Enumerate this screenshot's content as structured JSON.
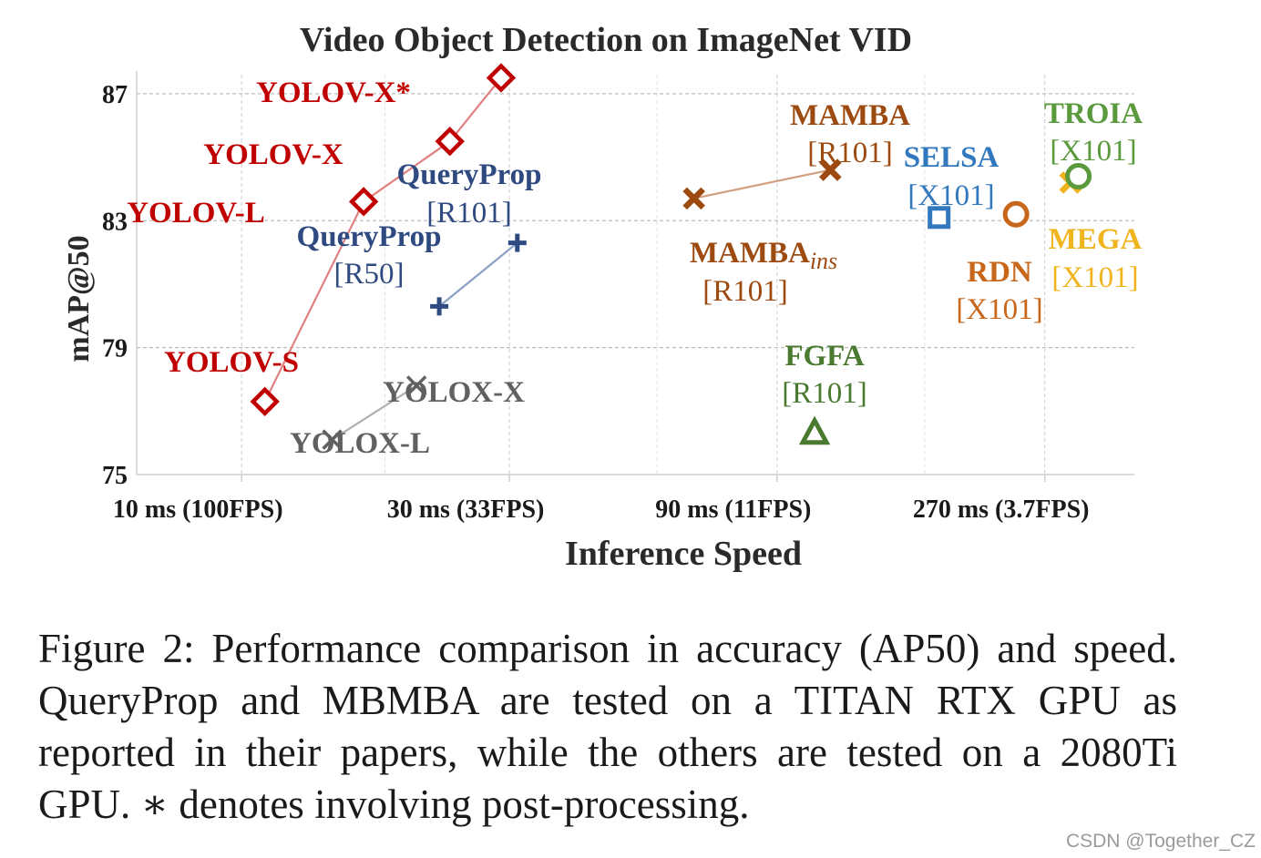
{
  "chart_data": {
    "type": "scatter",
    "title": "Video Object Detection on ImageNet VID",
    "xlabel": "Inference Speed",
    "ylabel": "mAP@50",
    "x_scale": "log",
    "xlim_ms": [
      6.5,
      390
    ],
    "ylim": [
      75,
      87.6
    ],
    "x_ticks": [
      {
        "value": 10,
        "label": "10 ms (100FPS)"
      },
      {
        "value": 30,
        "label": "30 ms (33FPS)"
      },
      {
        "value": 90,
        "label": "90 ms (11FPS)"
      },
      {
        "value": 270,
        "label": "270 ms (3.7FPS)"
      }
    ],
    "y_ticks": [
      75,
      79,
      83,
      87
    ],
    "grid": true,
    "series": [
      {
        "name": "YOLOV",
        "color": "#c00000",
        "marker": "diamond",
        "connected": true,
        "points": [
          {
            "label": "YOLOV-S",
            "x": 11,
            "y": 77.3
          },
          {
            "label": "YOLOV-L",
            "x": 16.5,
            "y": 83.6
          },
          {
            "label": "YOLOV-X",
            "x": 23.5,
            "y": 85.5
          },
          {
            "label": "YOLOV-X*",
            "x": 29,
            "y": 87.5
          }
        ]
      },
      {
        "name": "YOLOX",
        "color": "#606060",
        "marker": "x",
        "connected": true,
        "points": [
          {
            "label": "YOLOX-L",
            "x": 14.5,
            "y": 76.1
          },
          {
            "label": "YOLOX-X",
            "x": 20.5,
            "y": 77.8
          }
        ]
      },
      {
        "name": "QueryProp",
        "color": "#2e4a80",
        "marker": "plus",
        "connected": true,
        "points": [
          {
            "label": "QueryProp [R50]",
            "x": 22.5,
            "y": 80.3
          },
          {
            "label": "QueryProp [R101]",
            "x": 31,
            "y": 82.3
          }
        ]
      },
      {
        "name": "MAMBA",
        "color": "#9c4a10",
        "marker": "x-bold",
        "connected": true,
        "points": [
          {
            "label": "MAMBAins [R101]",
            "x": 64,
            "y": 83.7
          },
          {
            "label": "MAMBA [R101]",
            "x": 112,
            "y": 84.6
          }
        ]
      },
      {
        "name": "SELSA [X101]",
        "color": "#3278be",
        "marker": "square",
        "points": [
          {
            "label": "SELSA [X101]",
            "x": 175,
            "y": 83.1
          }
        ]
      },
      {
        "name": "RDN [X101]",
        "color": "#c8661a",
        "marker": "circle",
        "points": [
          {
            "label": "RDN [X101]",
            "x": 240,
            "y": 83.2
          }
        ]
      },
      {
        "name": "MEGA [X101]",
        "color": "#f0b41e",
        "marker": "x-bold",
        "points": [
          {
            "label": "MEGA [X101]",
            "x": 300,
            "y": 84.2
          }
        ]
      },
      {
        "name": "TROIA [X101]",
        "color": "#5a9a3c",
        "marker": "circle",
        "points": [
          {
            "label": "TROIA [X101]",
            "x": 310,
            "y": 84.4
          }
        ]
      },
      {
        "name": "FGFA [R101]",
        "color": "#4a7a30",
        "marker": "triangle",
        "points": [
          {
            "label": "FGFA [R101]",
            "x": 105,
            "y": 76.3
          }
        ]
      }
    ],
    "annotations": [
      {
        "id": "yolovxs",
        "text": "YOLOV-X*",
        "color": "#c00000"
      },
      {
        "id": "yolovx",
        "text": "YOLOV-X",
        "color": "#c00000"
      },
      {
        "id": "yolovl",
        "text": "YOLOV-L",
        "color": "#c00000"
      },
      {
        "id": "yolovs",
        "text": "YOLOV-S",
        "color": "#c00000"
      },
      {
        "id": "qp101a",
        "text": "QueryProp",
        "color": "#2e4a80"
      },
      {
        "id": "qp101b",
        "text": "[R101]",
        "color": "#2e4a80"
      },
      {
        "id": "qp50a",
        "text": "QueryProp",
        "color": "#2e4a80"
      },
      {
        "id": "qp50b",
        "text": "[R50]",
        "color": "#2e4a80"
      },
      {
        "id": "yoloxx",
        "text": "YOLOX-X",
        "color": "#606060"
      },
      {
        "id": "yoloxl",
        "text": "YOLOX-L",
        "color": "#606060"
      },
      {
        "id": "mambaa",
        "text": "MAMBA",
        "color": "#9c4a10"
      },
      {
        "id": "mambab",
        "text": "[R101]",
        "color": "#9c4a10"
      },
      {
        "id": "mambainsa",
        "text": "MAMBA",
        "sub": "ins",
        "color": "#9c4a10"
      },
      {
        "id": "mambainsb",
        "text": "[R101]",
        "color": "#9c4a10"
      },
      {
        "id": "selsaa",
        "text": "SELSA",
        "color": "#3278be"
      },
      {
        "id": "selsab",
        "text": "[X101]",
        "color": "#3278be"
      },
      {
        "id": "rdna",
        "text": "RDN",
        "color": "#c8661a"
      },
      {
        "id": "rdnb",
        "text": "[X101]",
        "color": "#c8661a"
      },
      {
        "id": "troiaa",
        "text": "TROIA",
        "color": "#5a9a3c"
      },
      {
        "id": "troiab",
        "text": "[X101]",
        "color": "#5a9a3c"
      },
      {
        "id": "megaa",
        "text": "MEGA",
        "color": "#f0b41e"
      },
      {
        "id": "megab",
        "text": "[X101]",
        "color": "#f0b41e"
      },
      {
        "id": "fgfaa",
        "text": "FGFA",
        "color": "#4a7a30"
      },
      {
        "id": "fgfab",
        "text": "[R101]",
        "color": "#4a7a30"
      }
    ]
  },
  "caption": "Figure 2: Performance comparison in accuracy (AP50) and speed. QueryProp and MBMBA are tested on a TITAN RTX GPU as reported in their papers, while the others are tested on a 2080Ti GPU. ∗ denotes involving post-processing.",
  "watermark": "CSDN @Together_CZ"
}
